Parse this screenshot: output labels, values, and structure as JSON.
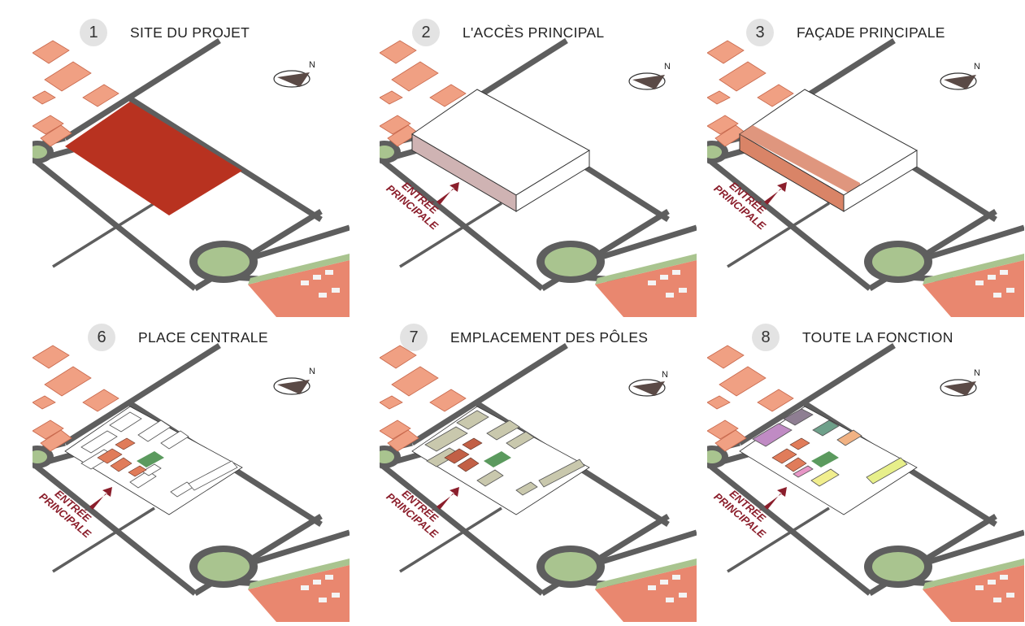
{
  "panels": [
    {
      "number": "1",
      "title": "SITE DU PROJET",
      "stage": "site"
    },
    {
      "number": "2",
      "title": "L'ACCÈS PRINCIPAL",
      "stage": "access"
    },
    {
      "number": "3",
      "title": "FAÇADE PRINCIPALE",
      "stage": "facade"
    },
    {
      "number": "6",
      "title": "PLACE CENTRALE",
      "stage": "place"
    },
    {
      "number": "7",
      "title": "EMPLACEMENT DES PÔLES",
      "stage": "poles"
    },
    {
      "number": "8",
      "title": "TOUTE LA FONCTION",
      "stage": "function"
    }
  ],
  "entry_label": {
    "line1": "ENTRÉE",
    "line2": "PRINCIPALE"
  },
  "north_label": "N",
  "colors": {
    "site": "#b83220",
    "road": "#5e5e5e",
    "roundabout": "#a9c48f",
    "building_block": "#f0a083",
    "arrow": "#8b1e2b",
    "facade": "#d98467",
    "pole_gray": "#c9c8ad",
    "green_place": "#5b9a5e"
  }
}
